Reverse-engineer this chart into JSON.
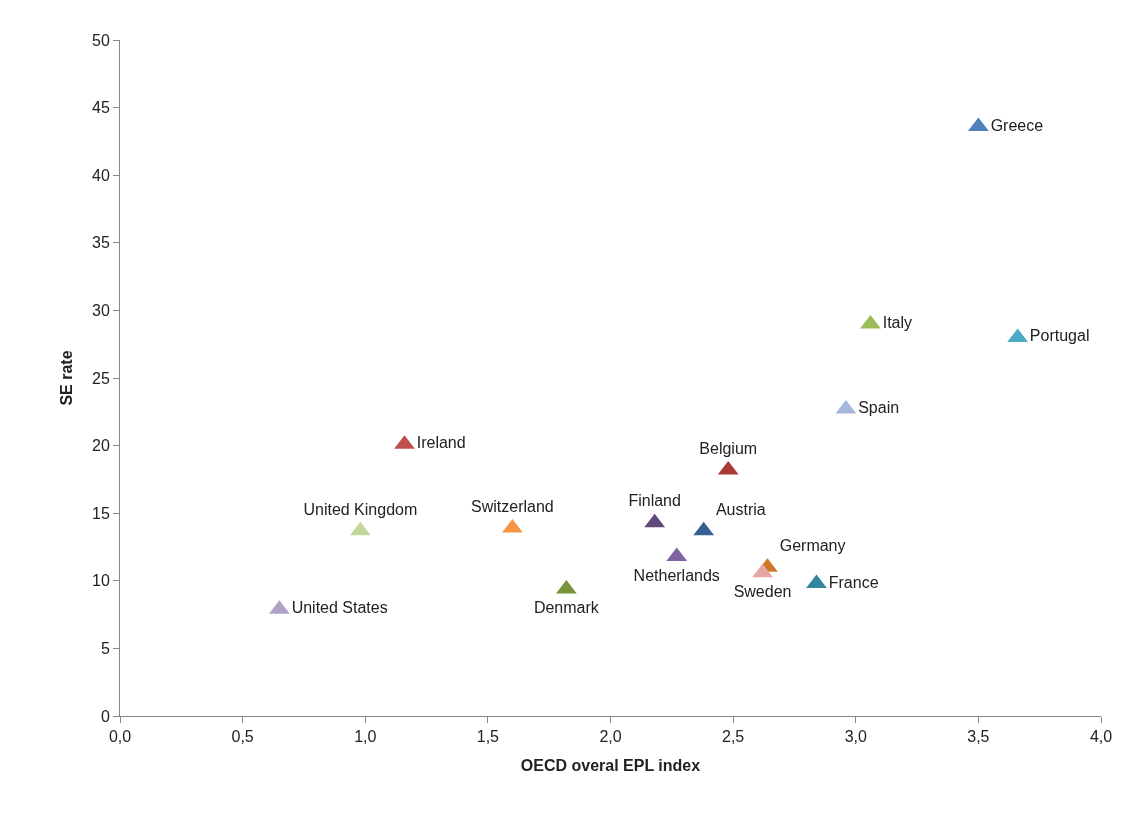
{
  "chart_data": {
    "type": "scatter",
    "xlabel": "OECD overal EPL index",
    "ylabel": "SE rate",
    "marker": "triangle",
    "legend": false,
    "xlim": [
      0,
      4
    ],
    "xticks": [
      {
        "value": 0,
        "label": "0,0"
      },
      {
        "value": 0.5,
        "label": "0,5"
      },
      {
        "value": 1,
        "label": "1,0"
      },
      {
        "value": 1.5,
        "label": "1,5"
      },
      {
        "value": 2,
        "label": "2,0"
      },
      {
        "value": 2.5,
        "label": "2,5"
      },
      {
        "value": 3,
        "label": "3,0"
      },
      {
        "value": 3.5,
        "label": "3,5"
      },
      {
        "value": 4,
        "label": "4,0"
      }
    ],
    "ylim": [
      0,
      50
    ],
    "yticks": [
      0,
      5,
      10,
      15,
      20,
      25,
      30,
      35,
      40,
      45,
      50
    ],
    "series": [
      {
        "name": "Greece",
        "color": "#4f81bd",
        "x": [
          3.5
        ],
        "values": [
          43.6
        ]
      },
      {
        "name": "Italy",
        "color": "#9bbb59",
        "x": [
          3.06
        ],
        "values": [
          29.0
        ]
      },
      {
        "name": "Portugal",
        "color": "#4bacc6",
        "x": [
          3.66
        ],
        "values": [
          28.0
        ]
      },
      {
        "name": "Spain",
        "color": "#a5b8d9",
        "x": [
          2.96
        ],
        "values": [
          22.7
        ]
      },
      {
        "name": "Ireland",
        "color": "#c0504d",
        "x": [
          1.16
        ],
        "values": [
          20.1
        ]
      },
      {
        "name": "Belgium",
        "color": "#a83a38",
        "x": [
          2.48
        ],
        "values": [
          18.2
        ]
      },
      {
        "name": "United Kingdom",
        "color": "#c3d69b",
        "x": [
          0.98
        ],
        "values": [
          13.7
        ]
      },
      {
        "name": "Switzerland",
        "color": "#f79646",
        "x": [
          1.6
        ],
        "values": [
          13.9
        ]
      },
      {
        "name": "Finland",
        "color": "#604a7b",
        "x": [
          2.18
        ],
        "values": [
          14.3
        ]
      },
      {
        "name": "Austria",
        "color": "#376092",
        "x": [
          2.38
        ],
        "values": [
          13.7
        ]
      },
      {
        "name": "Netherlands",
        "color": "#8064a2",
        "x": [
          2.27
        ],
        "values": [
          11.8
        ]
      },
      {
        "name": "Germany",
        "color": "#d0782a",
        "x": [
          2.64
        ],
        "values": [
          11.0
        ]
      },
      {
        "name": "Sweden",
        "color": "#e6a6a4",
        "x": [
          2.62
        ],
        "values": [
          10.6
        ]
      },
      {
        "name": "France",
        "color": "#31859c",
        "x": [
          2.84
        ],
        "values": [
          9.8
        ]
      },
      {
        "name": "Denmark",
        "color": "#77933c",
        "x": [
          1.82
        ],
        "values": [
          9.4
        ]
      },
      {
        "name": "United States",
        "color": "#b3a2c7",
        "x": [
          0.65
        ],
        "values": [
          7.9
        ]
      }
    ]
  }
}
